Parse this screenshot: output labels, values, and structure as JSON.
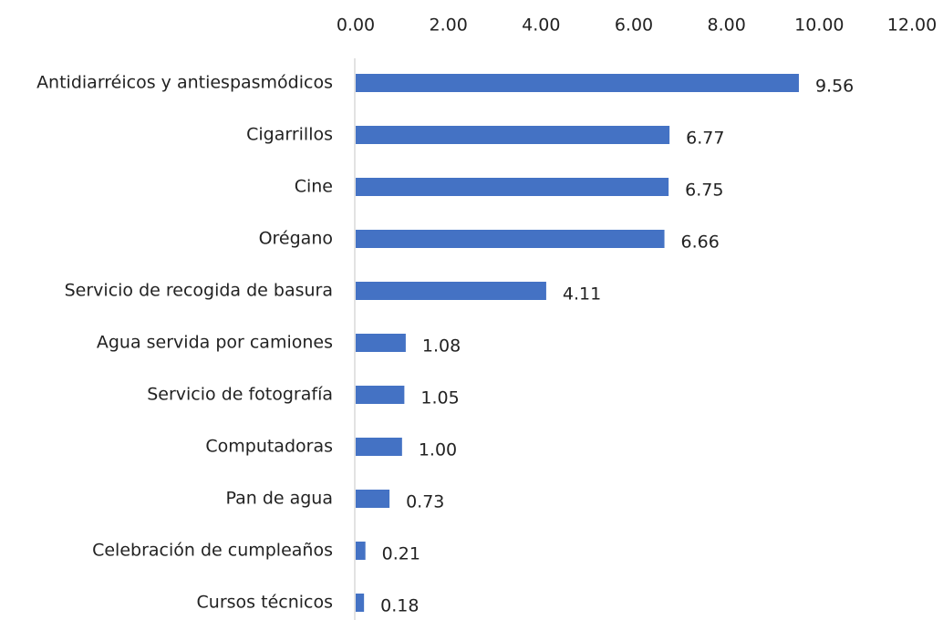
{
  "chart_data": {
    "type": "bar",
    "orientation": "horizontal",
    "categories": [
      "Antidiarréicos y antiespasmódicos",
      "Cigarrillos",
      "Cine",
      "Orégano",
      "Servicio de recogida de basura",
      "Agua servida por camiones",
      "Servicio de fotografía",
      "Computadoras",
      "Pan de agua",
      "Celebración de cumpleaños",
      "Cursos técnicos"
    ],
    "values": [
      9.56,
      6.77,
      6.75,
      6.66,
      4.11,
      1.08,
      1.05,
      1.0,
      0.73,
      0.21,
      0.18
    ],
    "value_labels": [
      "9.56",
      "6.77",
      "6.75",
      "6.66",
      "4.11",
      "1.08",
      "1.05",
      "1.00",
      "0.73",
      "0.21",
      "0.18"
    ],
    "color": "#4472c4",
    "xlim": [
      0,
      12
    ],
    "xticks": [
      {
        "value": 0,
        "label": "0.00"
      },
      {
        "value": 2,
        "label": "2.00"
      },
      {
        "value": 4,
        "label": "4.00"
      },
      {
        "value": 6,
        "label": "6.00"
      },
      {
        "value": 8,
        "label": "8.00"
      },
      {
        "value": 10,
        "label": "10.00"
      },
      {
        "value": 12,
        "label": "12.00"
      }
    ],
    "grid": false
  }
}
